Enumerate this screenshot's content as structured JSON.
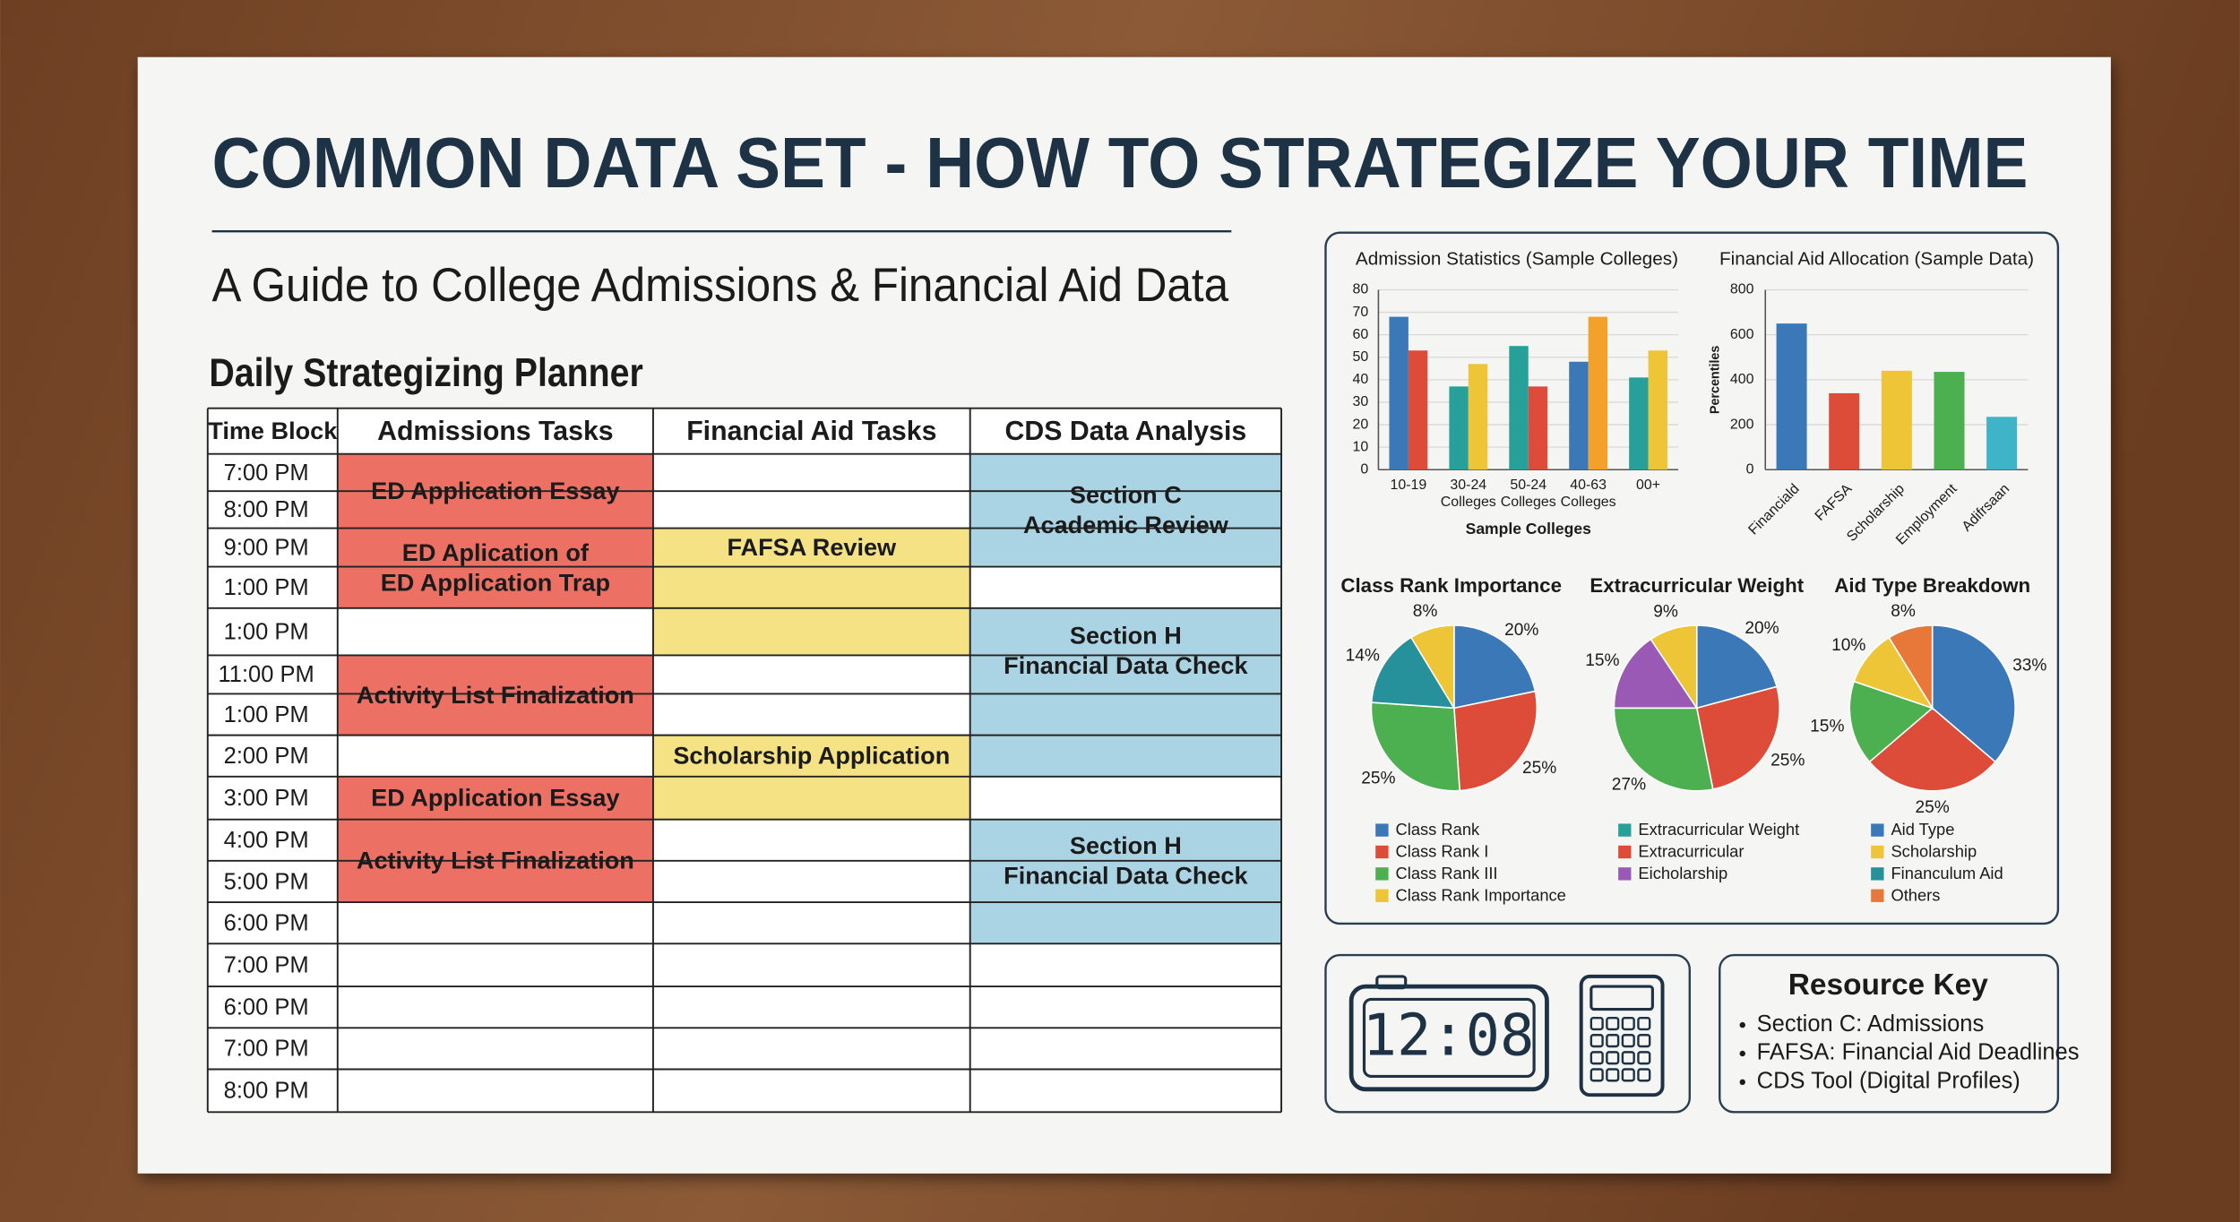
{
  "header": {
    "title": "COMMON DATA SET - HOW TO STRATEGIZE YOUR TIME",
    "subtitle": "A Guide to College Admissions & Financial Aid Data"
  },
  "planner": {
    "title": "Daily Strategizing Planner",
    "headers": [
      "Time Block",
      "Admissions Tasks",
      "Financial Aid Tasks",
      "CDS Data Analysis"
    ],
    "times": [
      "7:00 PM",
      "8:00 PM",
      "9:00 PM",
      "1:00 PM",
      "1:00 PM",
      "11:00 PM",
      "1:00 PM",
      "2:00 PM",
      "3:00 PM",
      "4:00 PM",
      "5:00 PM",
      "6:00 PM",
      "7:00 PM",
      "6:00 PM",
      "7:00 PM",
      "8:00 PM"
    ],
    "blocks": [
      {
        "column": 1,
        "rows": [
          1,
          2
        ],
        "color": "#ec7063",
        "lines": [
          "ED Application Essay"
        ]
      },
      {
        "column": 1,
        "rows": [
          3,
          4
        ],
        "color": "#ec7063",
        "lines": [
          "ED Aplication of",
          "ED Application Trap"
        ]
      },
      {
        "column": 1,
        "rows": [
          6,
          7
        ],
        "color": "#ec7063",
        "lines": [
          "Activity List Finalization"
        ]
      },
      {
        "column": 1,
        "rows": [
          9,
          9
        ],
        "color": "#ec7063",
        "lines": [
          "ED Application Essay"
        ]
      },
      {
        "column": 1,
        "rows": [
          10,
          11
        ],
        "color": "#ec7063",
        "lines": [
          "Activity List Finalization"
        ]
      },
      {
        "column": 2,
        "rows": [
          3,
          3
        ],
        "color": "#f4e285",
        "lines": [
          "FAFSA Review"
        ]
      },
      {
        "column": 2,
        "rows": [
          4,
          5
        ],
        "color": "#f4e285"
      },
      {
        "column": 2,
        "rows": [
          8,
          8
        ],
        "color": "#f4e285",
        "lines": [
          "Scholarship Application"
        ]
      },
      {
        "column": 2,
        "rows": [
          9,
          9
        ],
        "color": "#f4e285"
      },
      {
        "column": 3,
        "rows": [
          1,
          3
        ],
        "color": "#aad4e4",
        "lines": [
          "Section C",
          "Academic Review"
        ]
      },
      {
        "column": 3,
        "rows": [
          5,
          6
        ],
        "color": "#aad4e4",
        "lines": [
          "Section H",
          "Financial Data Check"
        ]
      },
      {
        "column": 3,
        "rows": [
          7,
          8
        ],
        "color": "#aad4e4"
      },
      {
        "column": 3,
        "rows": [
          10,
          11
        ],
        "color": "#aad4e4",
        "lines": [
          "Section H",
          "Financial Data Check"
        ]
      },
      {
        "column": 3,
        "rows": [
          12,
          12
        ],
        "color": "#aad4e4"
      }
    ]
  },
  "chart_data": [
    {
      "type": "bar",
      "title": "Admission Statistics (Sample Colleges)",
      "x_label": "Sample Colleges",
      "categories": [
        "10-19",
        "30-24 Colleges",
        "50-24 Colleges",
        "40-63 Colleges",
        "00+"
      ],
      "series": [
        {
          "values": [
            68,
            37,
            55,
            48,
            41
          ],
          "colors": [
            "#3a78b8",
            "#26a098",
            "#26a098",
            "#3a78b8",
            "#26a098"
          ]
        },
        {
          "values": [
            53,
            47,
            37,
            68,
            53
          ],
          "colors": [
            "#dd4b39",
            "#eec536",
            "#dd4b39",
            "#f3a12b",
            "#eec536"
          ]
        }
      ],
      "ylim": [
        0,
        80
      ],
      "yticks": [
        0,
        10,
        20,
        30,
        40,
        50,
        60,
        70,
        80
      ],
      "grid": true
    },
    {
      "type": "bar",
      "title": "Financial Aid Allocation (Sample Data)",
      "y_label": "Percentiles",
      "categories": [
        "Financiald",
        "FAFSA",
        "Scholarship",
        "Employment",
        "Adifrsaan"
      ],
      "series": [
        {
          "values": [
            650,
            340,
            440,
            435,
            235
          ],
          "colors": [
            "#3a78b8",
            "#dd4b39",
            "#eec536",
            "#4caf50",
            "#3fb3c8"
          ]
        }
      ],
      "ylim": [
        0,
        800
      ],
      "yticks": [
        0,
        200,
        400,
        600,
        800
      ],
      "grid": true
    },
    {
      "type": "pie",
      "title": "Class Rank Importance",
      "values": [
        20,
        25,
        25,
        14,
        8
      ],
      "value_labels": [
        "20%",
        "25%",
        "25%",
        "14%",
        "8%"
      ],
      "colors": [
        "#3a78b8",
        "#dd4b39",
        "#4caf50",
        "#26919a",
        "#eec536"
      ],
      "legend": [
        {
          "name": "Class Rank",
          "color": "#3a78b8"
        },
        {
          "name": "Class Rank I",
          "color": "#dd4b39"
        },
        {
          "name": "Class Rank III",
          "color": "#4caf50"
        },
        {
          "name": "Class Rank Importance",
          "color": "#eec536"
        }
      ]
    },
    {
      "type": "pie",
      "title": "Extracurricular Weight",
      "values": [
        20,
        25,
        27,
        15,
        9
      ],
      "value_labels": [
        "20%",
        "25%",
        "27%",
        "15%",
        "9%"
      ],
      "colors": [
        "#3a78b8",
        "#dd4b39",
        "#4caf50",
        "#9b59b6",
        "#eec536"
      ],
      "legend": [
        {
          "name": "Extracurricular Weight",
          "color": "#26a098"
        },
        {
          "name": "Extracurricular",
          "color": "#dd4b39"
        },
        {
          "name": "Eicholarship",
          "color": "#9b59b6"
        }
      ]
    },
    {
      "type": "pie",
      "title": "Aid Type Breakdown",
      "values": [
        33,
        25,
        15,
        10,
        8
      ],
      "value_labels": [
        "33%",
        "25%",
        "15%",
        "10%",
        "8%"
      ],
      "colors": [
        "#3a78b8",
        "#dd4b39",
        "#4caf50",
        "#eec536",
        "#e8773a"
      ],
      "legend": [
        {
          "name": "Aid Type",
          "color": "#3a78b8"
        },
        {
          "name": "Scholarship",
          "color": "#eec536"
        },
        {
          "name": "Financulum Aid",
          "color": "#26919a"
        },
        {
          "name": "Others",
          "color": "#e8773a"
        }
      ]
    }
  ],
  "clock": {
    "display": "12:08"
  },
  "resource_key": {
    "title": "Resource Key",
    "items": [
      "Section C: Admissions",
      "FAFSA: Financial Aid Deadlines",
      "CDS Tool (Digital Profiles)"
    ]
  }
}
